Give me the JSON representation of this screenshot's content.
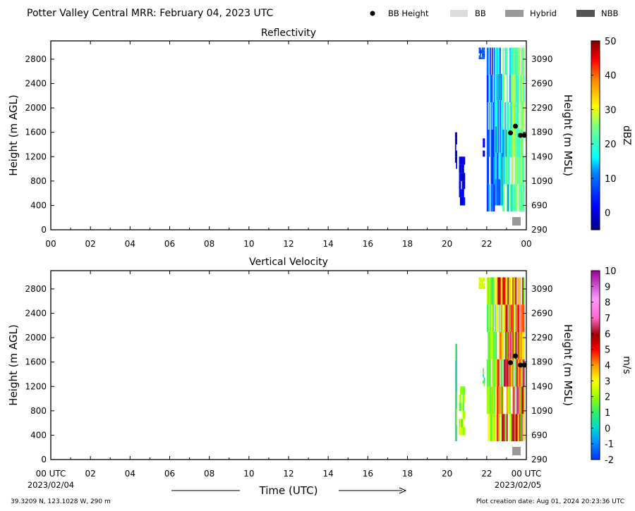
{
  "header": {
    "title": "Potter Valley Central MRR:  February 04, 2023 UTC",
    "legend": [
      {
        "label": "BB Height",
        "kind": "dot",
        "color": "#000000"
      },
      {
        "label": "BB",
        "kind": "swatch",
        "color": "#dcdcdc"
      },
      {
        "label": "Hybrid",
        "kind": "swatch",
        "color": "#999999"
      },
      {
        "label": "NBB",
        "kind": "swatch",
        "color": "#555555"
      }
    ]
  },
  "footer": {
    "xlabel": "Time (UTC)",
    "start_date": "2023/02/04",
    "end_date": "2023/02/05",
    "location": "39.3209 N, 123.1028 W, 290 m",
    "creation": "Plot creation date: Aug 01, 2024 20:23:36 UTC"
  },
  "chart_data": [
    {
      "type": "heatmap",
      "title": "Reflectivity",
      "ylabel": "Height (m AGL)",
      "y2label": "Height (m MSL)",
      "colorbar_label": "dBZ",
      "colorbar_ticks": [
        "50",
        "40",
        "30",
        "20",
        "10",
        "0"
      ],
      "colorbar_range": [
        -5,
        50
      ],
      "x_ticks": [
        "00",
        "02",
        "04",
        "06",
        "08",
        "10",
        "12",
        "14",
        "16",
        "18",
        "20",
        "22",
        "00"
      ],
      "xlim": [
        0,
        24
      ],
      "ylim": [
        0,
        3100
      ],
      "y_ticks": [
        "0",
        "400",
        "800",
        "1200",
        "1600",
        "2000",
        "2400",
        "2800"
      ],
      "y2_ticks": [
        "290",
        "690",
        "1090",
        "1490",
        "1890",
        "2290",
        "2690",
        "3090"
      ],
      "bb_height": [
        {
          "x": 23.2,
          "y": 1590
        },
        {
          "x": 23.45,
          "y": 1700
        },
        {
          "x": 23.7,
          "y": 1550
        },
        {
          "x": 23.9,
          "y": 1550
        }
      ],
      "bb_type": [
        {
          "x": 23.5,
          "kind": "Hybrid"
        }
      ]
    },
    {
      "type": "heatmap",
      "title": "Vertical Velocity",
      "ylabel": "Height (m AGL)",
      "y2label": "Height (m MSL)",
      "colorbar_label": "m/s",
      "colorbar_ticks": [
        "10",
        "9",
        "8",
        "7",
        "6",
        "5",
        "4",
        "3",
        "2",
        "1",
        "0",
        "-1",
        "-2"
      ],
      "colorbar_range": [
        -2,
        10
      ],
      "x_ticks": [
        "00 UTC",
        "02",
        "04",
        "06",
        "08",
        "10",
        "12",
        "14",
        "16",
        "18",
        "20",
        "22",
        "00 UTC"
      ],
      "xlim": [
        0,
        24
      ],
      "ylim": [
        0,
        3100
      ],
      "y_ticks": [
        "0",
        "400",
        "800",
        "1200",
        "1600",
        "2000",
        "2400",
        "2800"
      ],
      "y2_ticks": [
        "290",
        "690",
        "1090",
        "1490",
        "1890",
        "2290",
        "2690",
        "3090"
      ],
      "bb_height": [
        {
          "x": 23.2,
          "y": 1590
        },
        {
          "x": 23.45,
          "y": 1700
        },
        {
          "x": 23.7,
          "y": 1550
        },
        {
          "x": 23.9,
          "y": 1550
        }
      ],
      "bb_type": [
        {
          "x": 23.5,
          "kind": "Hybrid"
        }
      ]
    }
  ]
}
